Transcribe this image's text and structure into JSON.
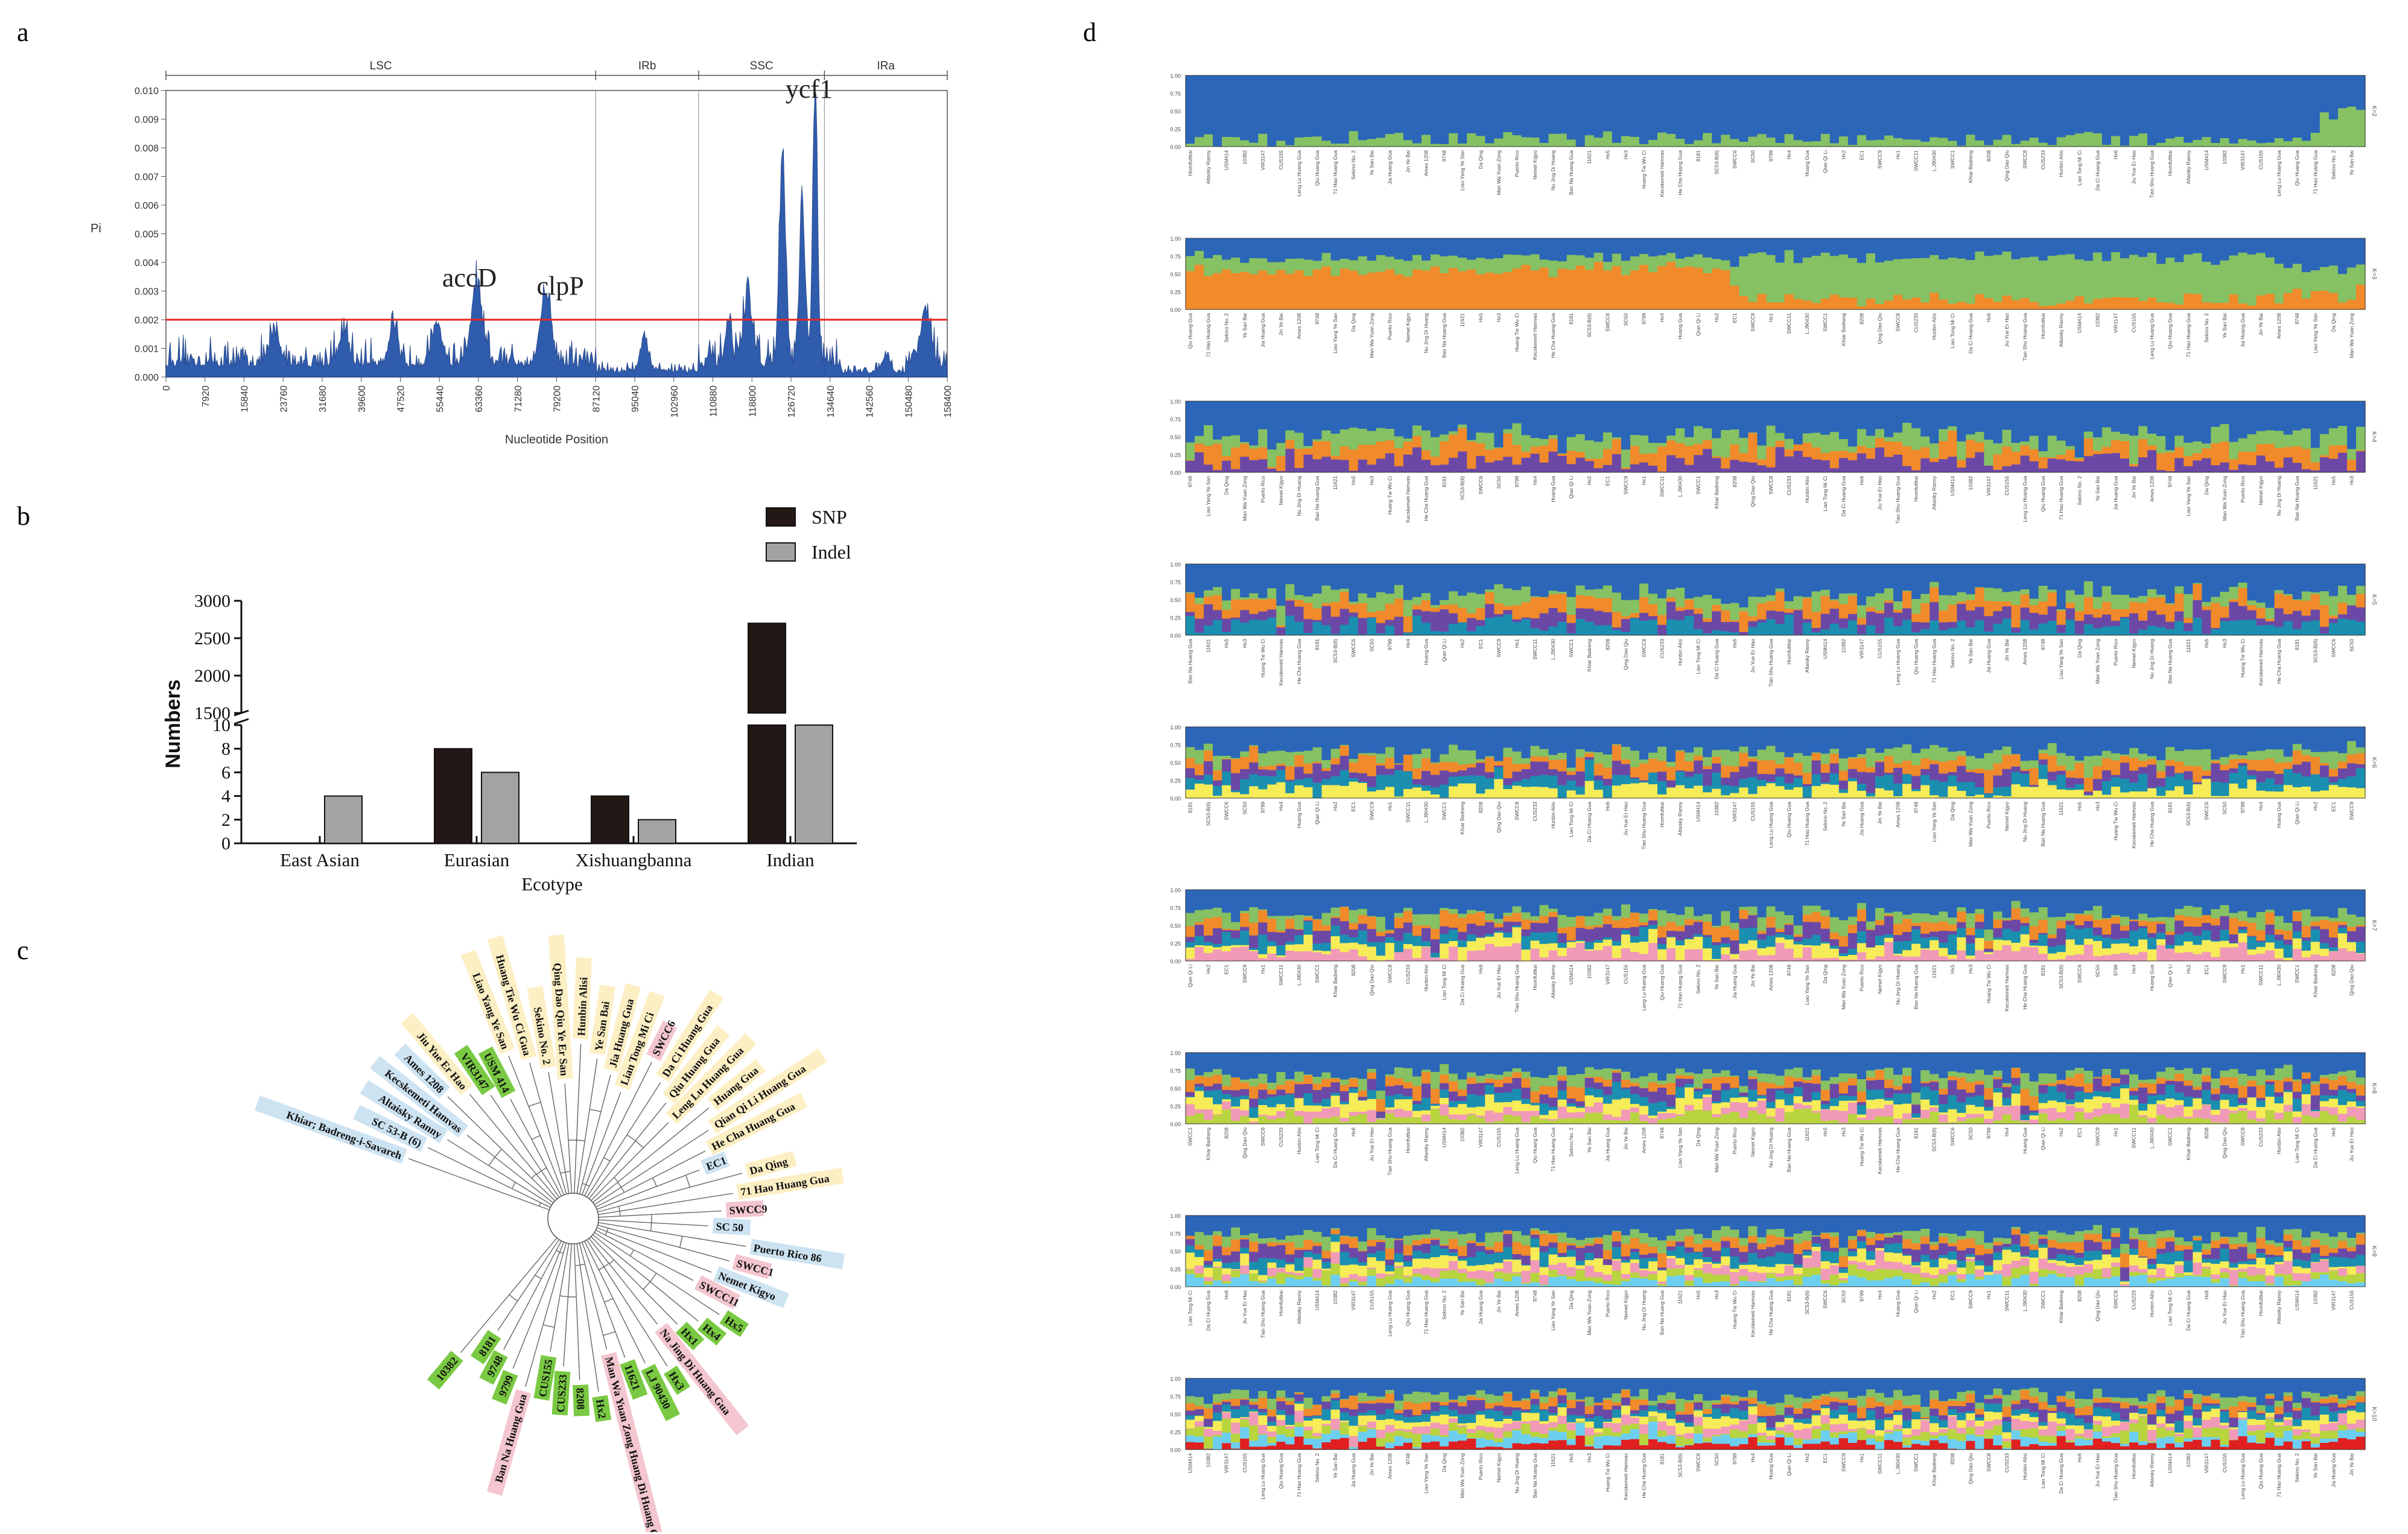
{
  "panels": {
    "a": "a",
    "b": "b",
    "c": "c",
    "d": "d"
  },
  "panel_a": {
    "regions": [
      "LSC",
      "IRb",
      "SSC",
      "IRa"
    ],
    "ylabel": "Pi",
    "xlabel": "Nucleotide Position",
    "yticks": [
      "0.000",
      "0.001",
      "0.002",
      "0.003",
      "0.004",
      "0.005",
      "0.006",
      "0.007",
      "0.008",
      "0.009",
      "0.010"
    ],
    "xticks": [
      "0",
      "7920",
      "15840",
      "23760",
      "31680",
      "39600",
      "47520",
      "55440",
      "63360",
      "71280",
      "79200",
      "87120",
      "95040",
      "102960",
      "110880",
      "118800",
      "126720",
      "134640",
      "142560",
      "150480",
      "158400"
    ],
    "genes": [
      "accD",
      "clpP",
      "ycf1"
    ],
    "threshold": 0.002
  },
  "chart_data": {
    "type": "bar",
    "categories": [
      "East Asian",
      "Eurasian",
      "Xishuangbanna",
      "Indian"
    ],
    "series": [
      {
        "name": "SNP",
        "values": [
          0,
          8,
          4,
          2700
        ],
        "color": "#231815"
      },
      {
        "name": "Indel",
        "values": [
          4,
          6,
          2,
          10
        ],
        "color": "#a3a3a3"
      }
    ],
    "xlabel": "Ecotype",
    "ylabel": "Numbers",
    "yticks_low": [
      "0",
      "2",
      "4",
      "6",
      "8",
      "10"
    ],
    "yticks_high": [
      "1500",
      "2000",
      "2500",
      "3000"
    ]
  },
  "panel_c": {
    "labels": [
      {
        "t": "Khiar; Badreng-i-Savareh",
        "c": "blue"
      },
      {
        "t": "SC 53-B (6)",
        "c": "blue"
      },
      {
        "t": "Altaisky Ranny",
        "c": "blue"
      },
      {
        "t": "Kecskemeti Hamvas",
        "c": "blue"
      },
      {
        "t": "Ames 1208",
        "c": "blue"
      },
      {
        "t": "Jiu Yue Er Hao",
        "c": "yellow"
      },
      {
        "t": "VIR3147",
        "c": "green"
      },
      {
        "t": "USM 414",
        "c": "green"
      },
      {
        "t": "Liao Yang Ye San",
        "c": "yellow"
      },
      {
        "t": "Huang Tie Wu Ci Gua",
        "c": "yellow"
      },
      {
        "t": "Sekino No. 2",
        "c": "yellow"
      },
      {
        "t": "Qing Dao Qiu Ye Er San",
        "c": "yellow"
      },
      {
        "t": "Hunbin Alisi",
        "c": "yellow"
      },
      {
        "t": "Ye San Bai",
        "c": "yellow"
      },
      {
        "t": "Jia Huang Gua",
        "c": "yellow"
      },
      {
        "t": "Lian Tong Mi Ci",
        "c": "yellow"
      },
      {
        "t": "SWCC6",
        "c": "pink"
      },
      {
        "t": "Da Ci Huang Gua",
        "c": "yellow"
      },
      {
        "t": "Qiu Huang Gua",
        "c": "yellow"
      },
      {
        "t": "Leng Lu Huang Gua",
        "c": "yellow"
      },
      {
        "t": "Huang Gua",
        "c": "yellow"
      },
      {
        "t": "Qian Qi Li Huang Gua",
        "c": "yellow"
      },
      {
        "t": "He Cha Huang Gua",
        "c": "yellow"
      },
      {
        "t": "EC1",
        "c": "blue"
      },
      {
        "t": "Da Qing",
        "c": "yellow"
      },
      {
        "t": "71 Hao Huang Gua",
        "c": "yellow"
      },
      {
        "t": "SWCC9",
        "c": "pink"
      },
      {
        "t": "SC 50",
        "c": "blue"
      },
      {
        "t": "Puerto Rico 86",
        "c": "blue"
      },
      {
        "t": "SWCC1",
        "c": "pink"
      },
      {
        "t": "Nemet Kigyo",
        "c": "blue"
      },
      {
        "t": "SWCC11",
        "c": "pink"
      },
      {
        "t": "Hx5",
        "c": "green"
      },
      {
        "t": "Hx4",
        "c": "green"
      },
      {
        "t": "Hx1",
        "c": "green"
      },
      {
        "t": "Na Jing Di Huang Gua",
        "c": "pink"
      },
      {
        "t": "Hx3",
        "c": "green"
      },
      {
        "t": "LJ 90430",
        "c": "green"
      },
      {
        "t": "11621",
        "c": "green"
      },
      {
        "t": "Man Wa Yuan Zong Huang Di Huang Gua",
        "c": "pink"
      },
      {
        "t": "Hx2",
        "c": "green"
      },
      {
        "t": "8208",
        "c": "green"
      },
      {
        "t": "CUS233",
        "c": "green"
      },
      {
        "t": "CUS155",
        "c": "green"
      },
      {
        "t": "Ban Na Huang Gua",
        "c": "pink"
      },
      {
        "t": "9799",
        "c": "green"
      },
      {
        "t": "9748",
        "c": "green"
      },
      {
        "t": "8181",
        "c": "green"
      },
      {
        "t": "10382",
        "c": "green"
      }
    ],
    "colors": {
      "blue": "#cde3f2",
      "yellow": "#fdefc4",
      "green": "#7ac943",
      "pink": "#f4c6cf"
    }
  },
  "panel_d": {
    "rows": [
      "K=2",
      "K=3",
      "K=4",
      "K=5",
      "K=6",
      "K=7",
      "K=8",
      "K=9",
      "K=10"
    ],
    "yticks": [
      "1.00",
      "0.75",
      "0.50",
      "0.25",
      "0.00"
    ],
    "samples": [
      "Hiomfuttkai",
      "Altaisky Ranny",
      "USM414",
      "10382",
      "VIR3147",
      "CUS155",
      "Leng Lu Huang Gua",
      "Qiu Huang Gua",
      "71 Hao Huang Gua",
      "Sekino No. 2",
      "Ye San Bai",
      "Jia Huang Gua",
      "Jin Ye Bai",
      "Ames 1208",
      "9748",
      "Liao Yang Ye San",
      "Da Qing",
      "Man Wa Yuan Zong",
      "Puerto Rico",
      "Nemet Kigyo",
      "Nu Jing Di Huang",
      "Ban Na Huang Gua",
      "11621",
      "Hx5",
      "Hx3",
      "Huang Tie Wu Ci",
      "Kecskemeti Hamvas",
      "He Cha Huang Gua",
      "8181",
      "SC53-B(6)",
      "SWCC6",
      "SC50",
      "9799",
      "Hx4",
      "Huang Gua",
      "Qian Qi Li",
      "Hx2",
      "EC1",
      "SWCC9",
      "Hx1",
      "SWCC11",
      "L.J90430",
      "SWCC1",
      "Khiar Badreng",
      "8208",
      "Qing Dao Qiu",
      "SWCC8",
      "CUS233",
      "Hunbin Alisi",
      "Lian Tong Mi Ci",
      "Da Ci Huang Gua",
      "Hx6",
      "Jiu Yue Er Hao",
      "Tian Shu Huang Gua"
    ],
    "colors": [
      "#2b66b8",
      "#86c163",
      "#f08a2a",
      "#6c48a6",
      "#1a8fb0",
      "#f6ec57",
      "#f09ab7",
      "#b8d53f",
      "#6ccff0",
      "#e02020"
    ]
  }
}
